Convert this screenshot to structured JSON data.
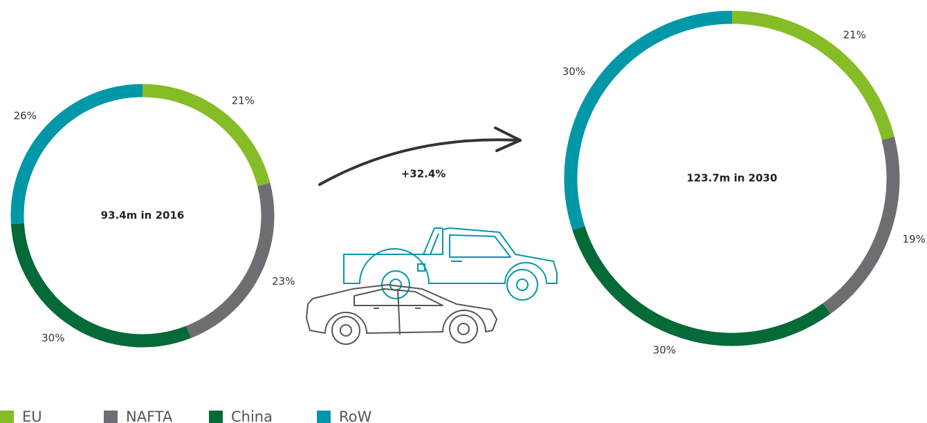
{
  "legend": {
    "categories": [
      "EU",
      "NAFTA",
      "China",
      "RoW"
    ],
    "colors": [
      "#86bc25",
      "#6d6e71",
      "#046a38",
      "#0097a9"
    ]
  },
  "growth_label": "+32.4%",
  "chart_data": [
    {
      "type": "donut",
      "center_label": "93.4m in 2016",
      "values": [
        21,
        23,
        30,
        26
      ],
      "value_labels": [
        "21%",
        "23%",
        "30%",
        "26%"
      ]
    },
    {
      "type": "donut",
      "center_label": "123.7m in 2030",
      "values": [
        21,
        19,
        30,
        30
      ],
      "value_labels": [
        "21%",
        "19%",
        "30%",
        "30%"
      ]
    }
  ]
}
